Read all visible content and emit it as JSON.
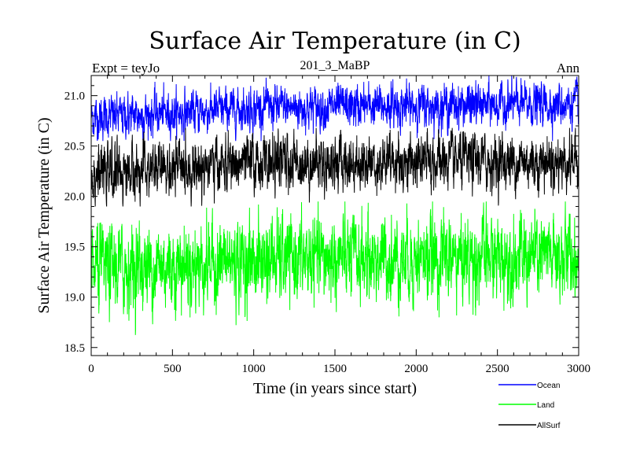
{
  "chart_data": {
    "type": "line",
    "title": "Surface Air Temperature (in C)",
    "subtitle_left": "Expt = teyJo",
    "subtitle_center": "201_3_MaBP",
    "subtitle_right": "Ann",
    "xlabel": "Time (in years since start)",
    "ylabel": "Surface Air Temperature (in C)",
    "xlim": [
      0,
      3000
    ],
    "ylim": [
      18.42,
      21.2
    ],
    "x_ticks": [
      0,
      500,
      1000,
      1500,
      2000,
      2500,
      3000
    ],
    "x_tick_labels": [
      "0",
      "500",
      "1000",
      "1500",
      "2000",
      "2500",
      "3000"
    ],
    "y_ticks": [
      18.5,
      19.0,
      19.5,
      20.0,
      20.5,
      21.0
    ],
    "y_tick_labels": [
      "18.5",
      "19.0",
      "19.5",
      "20.0",
      "20.5",
      "21.0"
    ],
    "n_points": 3000,
    "series": [
      {
        "name": "Ocean",
        "color": "#0000ff",
        "mean_start": 20.78,
        "mean_end": 20.92,
        "mean_mid": 20.88,
        "spread": 0.1,
        "min": 20.55,
        "max": 21.2
      },
      {
        "name": "Land",
        "color": "#00ff00",
        "mean_start": 19.27,
        "mean_end": 19.4,
        "mean_mid": 19.37,
        "spread": 0.2,
        "min": 18.5,
        "max": 19.95
      },
      {
        "name": "AllSurf",
        "color": "#000000",
        "mean_start": 20.22,
        "mean_end": 20.35,
        "mean_mid": 20.33,
        "spread": 0.13,
        "min": 19.9,
        "max": 20.68
      }
    ],
    "legend": [
      {
        "label": "Ocean",
        "color": "#0000ff"
      },
      {
        "label": "Land",
        "color": "#00ff00"
      },
      {
        "label": "AllSurf",
        "color": "#000000"
      }
    ]
  }
}
